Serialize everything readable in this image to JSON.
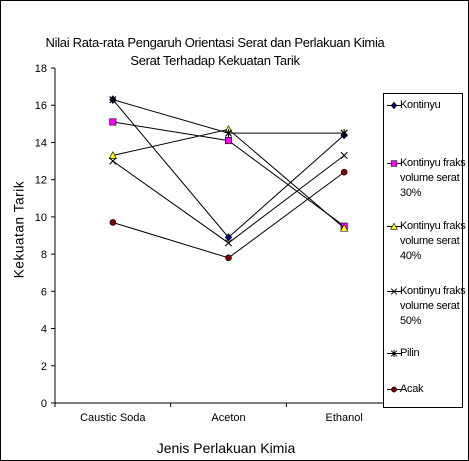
{
  "chart_data": {
    "type": "line",
    "title": "Nilai Rata-rata Pengaruh Orientasi Serat dan Perlakuan Kimia",
    "subtitle": "Serat Terhadap Kekuatan Tarik",
    "xlabel": "Jenis Perlakuan Kimia",
    "ylabel": "Kekuatan Tarik",
    "categories": [
      "Caustic Soda",
      "Aceton",
      "Ethanol"
    ],
    "ylim": [
      0,
      18
    ],
    "yticks": [
      "0",
      "2",
      "4",
      "6",
      "8",
      "10",
      "12",
      "14",
      "16",
      "18"
    ],
    "grid": false,
    "legend_position": "right",
    "series": [
      {
        "name": "Kontinyu",
        "values": [
          16.3,
          8.9,
          14.4
        ],
        "color": "#000080",
        "marker": "diamond"
      },
      {
        "name": "Kontinyu fraks volume serat 30%",
        "values": [
          15.1,
          14.1,
          9.5
        ],
        "color": "#ff00ff",
        "marker": "square"
      },
      {
        "name": "Kontinyu fraks volume serat 40%",
        "values": [
          13.3,
          14.7,
          9.4
        ],
        "color": "#ffff00",
        "marker": "triangle"
      },
      {
        "name": "Kontinyu fraks volume serat 50%",
        "values": [
          13.0,
          8.6,
          13.3
        ],
        "color": "#00ffff",
        "marker": "x"
      },
      {
        "name": "Pilin",
        "values": [
          16.3,
          14.5,
          14.5
        ],
        "color": "#800080",
        "marker": "star"
      },
      {
        "name": "Acak",
        "values": [
          9.7,
          7.8,
          12.4
        ],
        "color": "#800000",
        "marker": "circle"
      }
    ]
  }
}
